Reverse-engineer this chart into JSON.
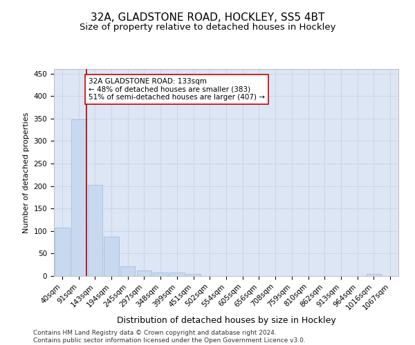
{
  "title": "32A, GLADSTONE ROAD, HOCKLEY, SS5 4BT",
  "subtitle": "Size of property relative to detached houses in Hockley",
  "xlabel": "Distribution of detached houses by size in Hockley",
  "ylabel": "Number of detached properties",
  "categories": [
    "40sqm",
    "91sqm",
    "143sqm",
    "194sqm",
    "245sqm",
    "297sqm",
    "348sqm",
    "399sqm",
    "451sqm",
    "502sqm",
    "554sqm",
    "605sqm",
    "656sqm",
    "708sqm",
    "759sqm",
    "810sqm",
    "862sqm",
    "913sqm",
    "964sqm",
    "1016sqm",
    "1067sqm"
  ],
  "values": [
    107,
    348,
    202,
    88,
    22,
    13,
    8,
    8,
    5,
    0,
    0,
    0,
    0,
    0,
    0,
    0,
    0,
    0,
    0,
    4,
    0
  ],
  "bar_color": "#c8d9ef",
  "bar_edge_color": "#9db8d8",
  "grid_color": "#ccd6e8",
  "bg_color": "#dce6f5",
  "vline_color": "#aa0000",
  "annotation_text": "32A GLADSTONE ROAD: 133sqm\n← 48% of detached houses are smaller (383)\n51% of semi-detached houses are larger (407) →",
  "annotation_box_color": "#ffffff",
  "annotation_box_edge": "#cc0000",
  "ylim": [
    0,
    460
  ],
  "yticks": [
    0,
    50,
    100,
    150,
    200,
    250,
    300,
    350,
    400,
    450
  ],
  "footer": "Contains HM Land Registry data © Crown copyright and database right 2024.\nContains public sector information licensed under the Open Government Licence v3.0.",
  "title_fontsize": 11,
  "subtitle_fontsize": 9.5,
  "xlabel_fontsize": 9,
  "ylabel_fontsize": 8,
  "tick_fontsize": 7.5,
  "footer_fontsize": 6.5,
  "ann_fontsize": 7.5
}
